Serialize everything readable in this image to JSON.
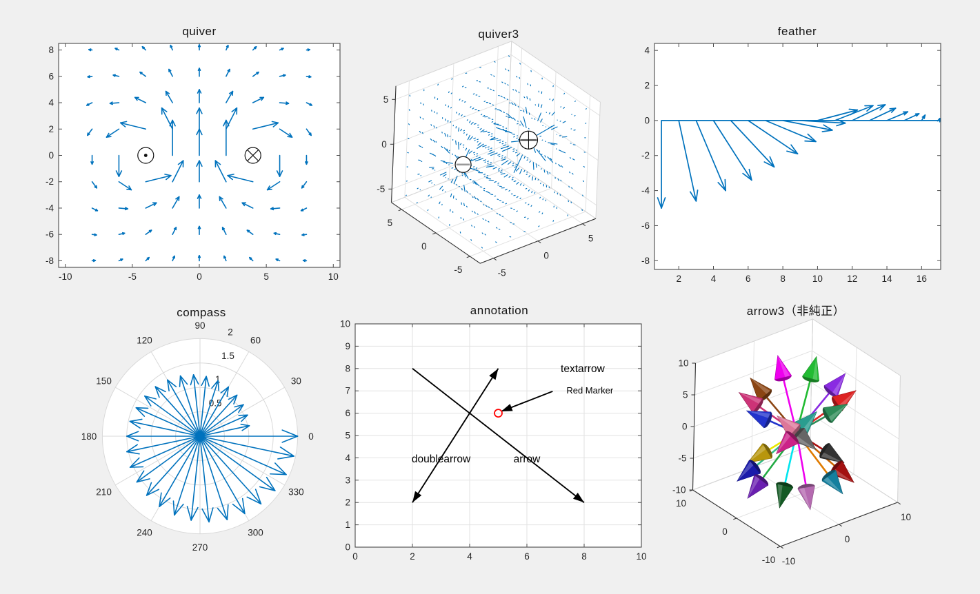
{
  "figure": {
    "background": "#f0f0f0",
    "accent_blue": "#0072BD",
    "axis_color": "#4a4a4a",
    "tick_label_color": "#262626",
    "grid_color": "#e2e2e2"
  },
  "chart_data": [
    {
      "id": "quiver",
      "type": "quiver",
      "title": "quiver",
      "xlim": [
        -10.5,
        10.5
      ],
      "ylim": [
        -8.5,
        8.5
      ],
      "xticks": [
        -10,
        -5,
        0,
        5,
        10
      ],
      "yticks": [
        -8,
        -6,
        -4,
        -2,
        0,
        2,
        4,
        6,
        8
      ],
      "grid_range": [
        -8,
        8
      ],
      "grid_step": 2,
      "field_scale": 4.0,
      "color": "#0072BD",
      "vortices": [
        {
          "x": -4,
          "y": 0,
          "sign": 1,
          "marker": "circled-dot"
        },
        {
          "x": 4,
          "y": 0,
          "sign": -1,
          "marker": "circled-cross"
        }
      ]
    },
    {
      "id": "quiver3",
      "type": "quiver3",
      "title": "quiver3",
      "xticks": [
        -5,
        0,
        5
      ],
      "yticks": [
        -5,
        0,
        5
      ],
      "zticks": [
        -5,
        0,
        5
      ],
      "lim": [
        -6.5,
        6.5
      ],
      "color": "#0072BD",
      "charges": [
        {
          "x": 3.2,
          "y": -0.6,
          "z": 0.45,
          "sign": "+",
          "marker": "circled-plus"
        },
        {
          "x": -3.2,
          "y": 0.6,
          "z": -0.45,
          "sign": "-",
          "marker": "circled-minus"
        }
      ],
      "grid_min": -5.6,
      "grid_max": 5.6,
      "grid_n": 8,
      "field_scale": 4.0,
      "max_seg_len": 1.8,
      "min_seg_len": 0.1
    },
    {
      "id": "feather",
      "type": "feather",
      "title": "feather",
      "xlim": [
        0.6,
        17.1
      ],
      "ylim": [
        -8.5,
        4.4
      ],
      "xticks": [
        2,
        4,
        6,
        8,
        10,
        12,
        14,
        16
      ],
      "yticks": [
        -8,
        -6,
        -4,
        -2,
        0,
        2,
        4
      ],
      "color": "#0072BD",
      "x": [
        1,
        2,
        3,
        4,
        5,
        6,
        7,
        8,
        9,
        10,
        11,
        12,
        13,
        14,
        15,
        16,
        17
      ],
      "u": [
        0.0,
        1.0,
        1.7,
        2.2,
        2.5,
        2.85,
        2.9,
        2.85,
        2.6,
        2.3,
        2.2,
        1.9,
        1.5,
        1.2,
        0.85,
        0.2,
        0.05
      ],
      "v": [
        -5.0,
        -4.6,
        -4.0,
        -3.4,
        -2.65,
        -1.9,
        -1.2,
        -0.55,
        -0.15,
        0.6,
        0.85,
        0.9,
        0.7,
        0.5,
        0.39,
        0.31,
        0.12
      ]
    },
    {
      "id": "compass",
      "type": "compass",
      "title": "compass",
      "rticks": [
        0.5,
        1,
        1.5,
        2
      ],
      "rlim": 2,
      "angle_ticks": [
        0,
        30,
        60,
        90,
        120,
        150,
        180,
        210,
        240,
        270,
        300,
        330
      ],
      "color": "#0072BD",
      "arrows": [
        {
          "angle": 12,
          "r": 1.033
        },
        {
          "angle": 24,
          "r": 1.067
        },
        {
          "angle": 36,
          "r": 1.1
        },
        {
          "angle": 48,
          "r": 1.133
        },
        {
          "angle": 60,
          "r": 1.167
        },
        {
          "angle": 72,
          "r": 1.2
        },
        {
          "angle": 84,
          "r": 1.233
        },
        {
          "angle": 96,
          "r": 1.267
        },
        {
          "angle": 108,
          "r": 1.3
        },
        {
          "angle": 120,
          "r": 1.333
        },
        {
          "angle": 132,
          "r": 1.367
        },
        {
          "angle": 144,
          "r": 1.4
        },
        {
          "angle": 156,
          "r": 1.433
        },
        {
          "angle": 168,
          "r": 1.467
        },
        {
          "angle": 180,
          "r": 1.5
        },
        {
          "angle": 192,
          "r": 1.533
        },
        {
          "angle": 204,
          "r": 1.567
        },
        {
          "angle": 216,
          "r": 1.6
        },
        {
          "angle": 228,
          "r": 1.633
        },
        {
          "angle": 240,
          "r": 1.667
        },
        {
          "angle": 252,
          "r": 1.7
        },
        {
          "angle": 264,
          "r": 1.733
        },
        {
          "angle": 276,
          "r": 1.767
        },
        {
          "angle": 288,
          "r": 1.8
        },
        {
          "angle": 300,
          "r": 1.833
        },
        {
          "angle": 312,
          "r": 1.867
        },
        {
          "angle": 324,
          "r": 1.9
        },
        {
          "angle": 336,
          "r": 1.933
        },
        {
          "angle": 348,
          "r": 1.967
        },
        {
          "angle": 360,
          "r": 2.0
        }
      ]
    },
    {
      "id": "annotation",
      "type": "annotation",
      "title": "annotation",
      "xlim": [
        0,
        10
      ],
      "ylim": [
        0,
        10
      ],
      "xticks": [
        0,
        2,
        4,
        6,
        8,
        10
      ],
      "yticks": [
        0,
        1,
        2,
        3,
        4,
        5,
        6,
        7,
        8,
        9,
        10
      ],
      "grid": true,
      "annotations": [
        {
          "kind": "arrow",
          "label": "arrow",
          "from": [
            2,
            8
          ],
          "to": [
            8,
            2
          ],
          "label_at": [
            6.0,
            3.95
          ]
        },
        {
          "kind": "doublearrow",
          "label": "doublearrow",
          "from": [
            2,
            2
          ],
          "to": [
            5,
            8
          ],
          "label_at": [
            3.0,
            3.95
          ]
        },
        {
          "kind": "textarrow",
          "label": "textarrow",
          "text": "Red Marker",
          "from": [
            6.9,
            6.98
          ],
          "to": [
            5.1,
            6.08
          ],
          "label_at": [
            7.95,
            8.0
          ],
          "text_at": [
            8.2,
            7.0
          ]
        }
      ],
      "marker": {
        "x": 5,
        "y": 6,
        "shape": "circle",
        "color": "#ff0000"
      }
    },
    {
      "id": "arrow3",
      "type": "arrow3",
      "title": "arrow3（非純正）",
      "xticks": [
        -10,
        0,
        10
      ],
      "yticks": [
        -10,
        0,
        10
      ],
      "zticks": [
        -10,
        -5,
        0,
        5,
        10
      ],
      "lim": [
        -10,
        10
      ],
      "arrows": [
        {
          "v": [
            -2,
            2,
            12
          ],
          "color": "#ee00ee"
        },
        {
          "v": [
            2,
            -1.5,
            12
          ],
          "color": "#22bb33"
        },
        {
          "v": [
            5.5,
            -3.5,
            9
          ],
          "color": "#8a2be2"
        },
        {
          "v": [
            7,
            -4,
            6
          ],
          "color": "#dd2222"
        },
        {
          "v": [
            -5.5,
            3.5,
            9
          ],
          "color": "#8b4513"
        },
        {
          "v": [
            -7,
            4,
            7
          ],
          "color": "#cc3377"
        },
        {
          "v": [
            -6,
            3.5,
            4
          ],
          "color": "#2233cc"
        },
        {
          "v": [
            6,
            -3.5,
            4
          ],
          "color": "#2e8b57"
        },
        {
          "v": [
            -2.5,
            1.2,
            3
          ],
          "color": "#dd7799"
        },
        {
          "v": [
            2.5,
            -1.2,
            3
          ],
          "color": "#2a9d8f"
        },
        {
          "v": [
            -6,
            3,
            -4
          ],
          "color": "#b8960c",
          "shaft": "#e8e800"
        },
        {
          "v": [
            -7,
            4,
            -7
          ],
          "color": "#1a1aaa",
          "shaft": "#33bb88"
        },
        {
          "v": [
            -5.5,
            3.5,
            -10
          ],
          "color": "#6a1fb0",
          "shaft": "#22aa44"
        },
        {
          "v": [
            -1.5,
            1.5,
            -12
          ],
          "color": "#145a24",
          "shaft": "#00e5ee"
        },
        {
          "v": [
            1.5,
            -1.5,
            -12
          ],
          "color": "#b56ab0",
          "shaft": "#ee00ee"
        },
        {
          "v": [
            5.5,
            -3.5,
            -10
          ],
          "color": "#147f9e",
          "shaft": "#e07b00"
        },
        {
          "v": [
            7,
            -4,
            -8.5
          ],
          "color": "#a31111",
          "shaft": "#cc6600"
        },
        {
          "v": [
            6,
            -3,
            -5.5
          ],
          "color": "#333333",
          "shaft": "#aa1111"
        },
        {
          "v": [
            2.5,
            -1.2,
            -3
          ],
          "color": "#666666"
        },
        {
          "v": [
            -2.5,
            1.2,
            -3
          ],
          "color": "#cc2288"
        }
      ]
    }
  ]
}
